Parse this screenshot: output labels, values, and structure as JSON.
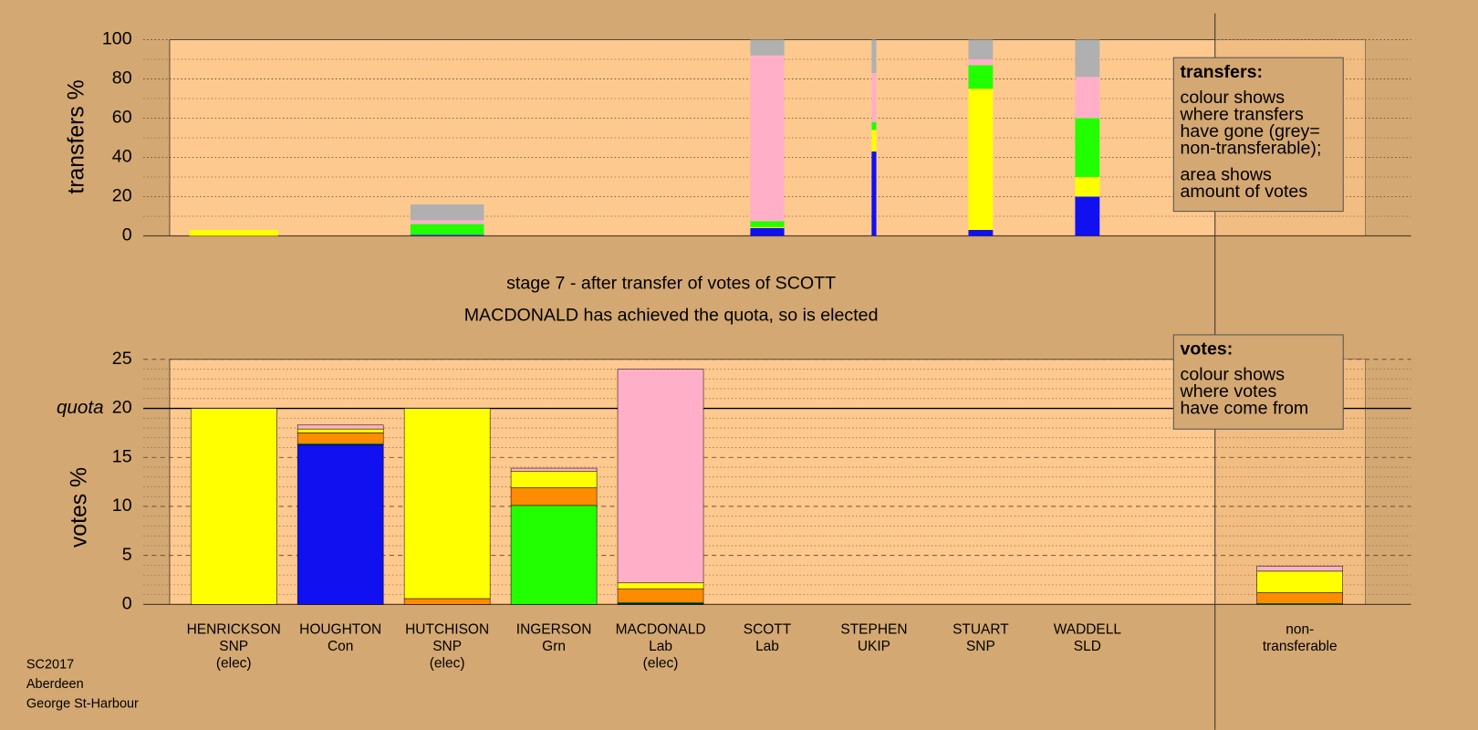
{
  "chart_data": [
    {
      "type": "bar",
      "stacked": true,
      "ylabel": "transfers %",
      "ylim": [
        0,
        100
      ],
      "yticks": [
        0,
        20,
        40,
        60,
        80,
        100
      ],
      "minor_divisions": 2,
      "widths": [
        94,
        0,
        78,
        0,
        0,
        36,
        5,
        26,
        26,
        0
      ],
      "series": [
        {
          "color": "#1010f0",
          "values": [
            0,
            0,
            0.5,
            0,
            0,
            4,
            43,
            3,
            20,
            0
          ]
        },
        {
          "color": "#ffff00",
          "values": [
            3,
            0,
            0,
            0,
            0,
            0.5,
            11,
            72,
            10,
            0
          ]
        },
        {
          "color": "#22ff00",
          "values": [
            0,
            0,
            5.5,
            0,
            0,
            3,
            4,
            12,
            30,
            0
          ]
        },
        {
          "color": "#ffb0c8",
          "values": [
            0,
            0,
            2,
            0,
            0,
            84.5,
            25,
            3,
            21,
            0
          ]
        },
        {
          "color": "#b0b0b0",
          "values": [
            0,
            0,
            8,
            0,
            0,
            8,
            17,
            10,
            19,
            0
          ]
        }
      ],
      "note": {
        "heading": "transfers:",
        "paragraphs": [
          [
            "colour shows",
            "where transfers",
            "have gone (grey=",
            "non-transferable);"
          ],
          [
            "area shows",
            "amount of votes"
          ]
        ]
      }
    },
    {
      "type": "bar",
      "stacked": true,
      "title": "stage 7 - after transfer of votes of SCOTT",
      "subtitle": "MACDONALD has achieved the quota, so is elected",
      "ylabel": "votes %",
      "ylim": [
        0,
        25
      ],
      "yticks": [
        0,
        5,
        10,
        15,
        20,
        25
      ],
      "minor_divisions": 5,
      "quota": {
        "value": 20,
        "label": "quota"
      },
      "categories": [
        [
          "HENRICKSON",
          "SNP",
          "(elec)"
        ],
        [
          "HOUGHTON",
          "Con"
        ],
        [
          "HUTCHISON",
          "SNP",
          "(elec)"
        ],
        [
          "INGERSON",
          "Grn"
        ],
        [
          "MACDONALD",
          "Lab",
          "(elec)"
        ],
        [
          "SCOTT",
          "Lab"
        ],
        [
          "STEPHEN",
          "UKIP"
        ],
        [
          "STUART",
          "SNP"
        ],
        [
          "WADDELL",
          "SLD"
        ],
        [
          "non-",
          "transferable"
        ]
      ],
      "series": [
        {
          "color": "#1010f0",
          "values": [
            0,
            16.3,
            0,
            0,
            0.1,
            0,
            0,
            0,
            0,
            0
          ]
        },
        {
          "color": "#22ff00",
          "values": [
            0,
            0.1,
            0,
            10.1,
            0.1,
            0,
            0,
            0,
            0,
            0.1
          ]
        },
        {
          "color": "#ff8c00",
          "values": [
            0,
            1.1,
            0.6,
            1.8,
            1.4,
            0,
            0,
            0,
            0,
            1.1
          ]
        },
        {
          "color": "#ffff00",
          "values": [
            20,
            0.4,
            19.4,
            1.7,
            0.6,
            0,
            0,
            0,
            0,
            2.2
          ]
        },
        {
          "color": "#ffb0c8",
          "values": [
            0,
            0.4,
            0,
            0.3,
            21.8,
            0,
            0,
            0,
            0,
            0.5
          ]
        }
      ],
      "note": {
        "heading": "votes:",
        "paragraphs": [
          [
            "colour shows",
            "where votes",
            "have come from"
          ]
        ]
      }
    }
  ],
  "footer": [
    "SC2017",
    "Aberdeen",
    "George St-Harbour"
  ]
}
